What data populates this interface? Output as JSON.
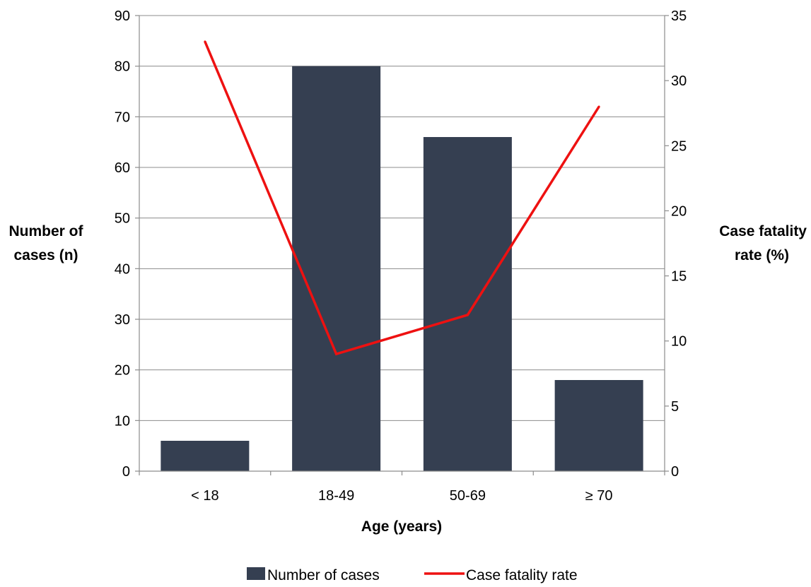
{
  "chart_data": {
    "type": "bar",
    "categories": [
      "< 18",
      "18-49",
      "50-69",
      "≥ 70"
    ],
    "series": [
      {
        "name": "Number of cases",
        "type": "bar",
        "axis": "left",
        "values": [
          6,
          80,
          66,
          18
        ]
      },
      {
        "name": "Case fatality rate",
        "type": "line",
        "axis": "right",
        "values": [
          33,
          9,
          12,
          28
        ]
      }
    ],
    "xlabel": "Age (years)",
    "ylabel_left_lines": [
      "Number of",
      "cases (n)"
    ],
    "ylabel_right_lines": [
      "Case fatality",
      "rate (%)"
    ],
    "ylim_left": [
      0,
      90
    ],
    "ylim_right": [
      0,
      35
    ],
    "yticks_left": [
      0,
      10,
      20,
      30,
      40,
      50,
      60,
      70,
      80,
      90
    ],
    "yticks_right": [
      0,
      5,
      10,
      15,
      20,
      25,
      30,
      35
    ],
    "grid": true,
    "legend_position": "bottom",
    "colors": {
      "bar": "#353f51",
      "line": "#ee1111",
      "grid": "#8c8c8c",
      "axis": "#8c8c8c"
    }
  }
}
